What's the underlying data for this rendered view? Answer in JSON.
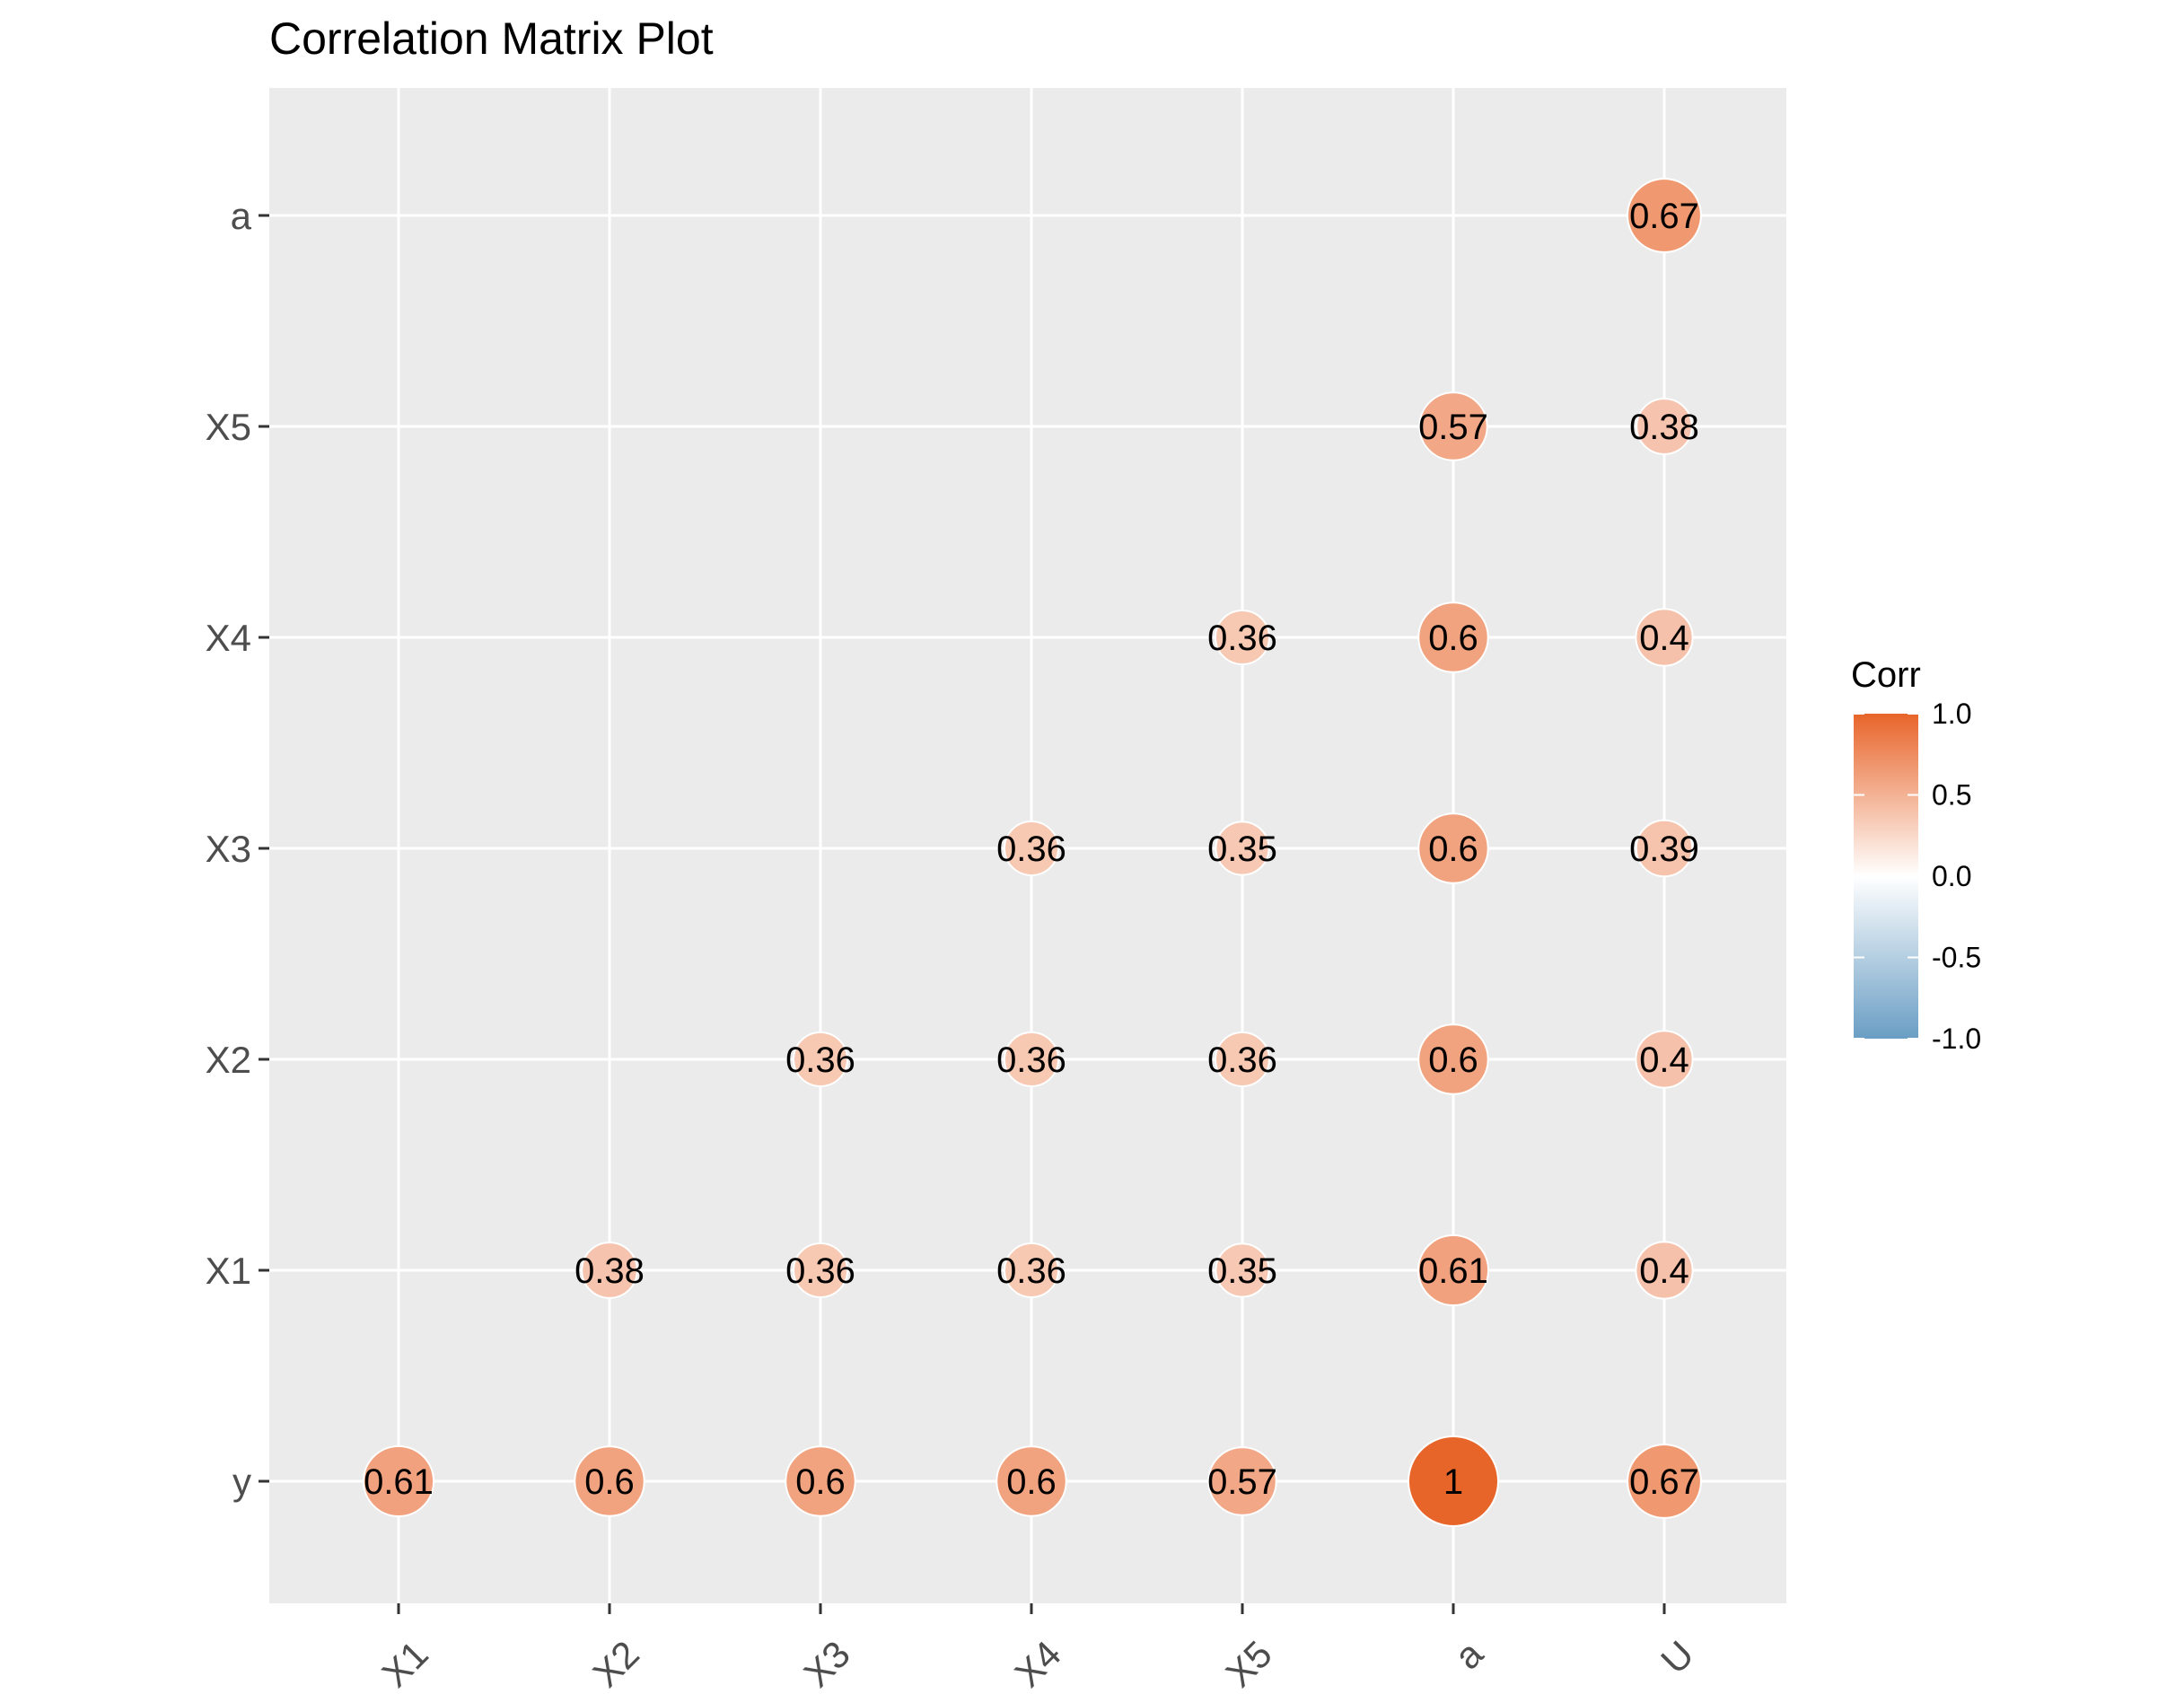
{
  "chart_data": {
    "type": "scatter",
    "title": "Correlation Matrix Plot",
    "xlabel": "",
    "ylabel": "",
    "x_categories": [
      "X1",
      "X2",
      "X3",
      "X4",
      "X5",
      "a",
      "U"
    ],
    "y_categories": [
      "y",
      "X1",
      "X2",
      "X3",
      "X4",
      "X5",
      "a"
    ],
    "cells": [
      {
        "x": "X1",
        "y": "y",
        "value": 0.61,
        "label": "0.61"
      },
      {
        "x": "X2",
        "y": "y",
        "value": 0.6,
        "label": "0.6"
      },
      {
        "x": "X3",
        "y": "y",
        "value": 0.6,
        "label": "0.6"
      },
      {
        "x": "X4",
        "y": "y",
        "value": 0.6,
        "label": "0.6"
      },
      {
        "x": "X5",
        "y": "y",
        "value": 0.57,
        "label": "0.57"
      },
      {
        "x": "a",
        "y": "y",
        "value": 1.0,
        "label": "1"
      },
      {
        "x": "U",
        "y": "y",
        "value": 0.67,
        "label": "0.67"
      },
      {
        "x": "X2",
        "y": "X1",
        "value": 0.38,
        "label": "0.38"
      },
      {
        "x": "X3",
        "y": "X1",
        "value": 0.36,
        "label": "0.36"
      },
      {
        "x": "X4",
        "y": "X1",
        "value": 0.36,
        "label": "0.36"
      },
      {
        "x": "X5",
        "y": "X1",
        "value": 0.35,
        "label": "0.35"
      },
      {
        "x": "a",
        "y": "X1",
        "value": 0.61,
        "label": "0.61"
      },
      {
        "x": "U",
        "y": "X1",
        "value": 0.4,
        "label": "0.4"
      },
      {
        "x": "X3",
        "y": "X2",
        "value": 0.36,
        "label": "0.36"
      },
      {
        "x": "X4",
        "y": "X2",
        "value": 0.36,
        "label": "0.36"
      },
      {
        "x": "X5",
        "y": "X2",
        "value": 0.36,
        "label": "0.36"
      },
      {
        "x": "a",
        "y": "X2",
        "value": 0.6,
        "label": "0.6"
      },
      {
        "x": "U",
        "y": "X2",
        "value": 0.4,
        "label": "0.4"
      },
      {
        "x": "X4",
        "y": "X3",
        "value": 0.36,
        "label": "0.36"
      },
      {
        "x": "X5",
        "y": "X3",
        "value": 0.35,
        "label": "0.35"
      },
      {
        "x": "a",
        "y": "X3",
        "value": 0.6,
        "label": "0.6"
      },
      {
        "x": "U",
        "y": "X3",
        "value": 0.39,
        "label": "0.39"
      },
      {
        "x": "X5",
        "y": "X4",
        "value": 0.36,
        "label": "0.36"
      },
      {
        "x": "a",
        "y": "X4",
        "value": 0.6,
        "label": "0.6"
      },
      {
        "x": "U",
        "y": "X4",
        "value": 0.4,
        "label": "0.4"
      },
      {
        "x": "a",
        "y": "X5",
        "value": 0.57,
        "label": "0.57"
      },
      {
        "x": "U",
        "y": "X5",
        "value": 0.38,
        "label": "0.38"
      },
      {
        "x": "U",
        "y": "a",
        "value": 0.67,
        "label": "0.67"
      }
    ],
    "legend": {
      "title": "Corr",
      "placement": "right",
      "range": [
        -1.0,
        1.0
      ],
      "breaks": [
        1.0,
        0.5,
        0.0,
        -0.5,
        -1.0
      ],
      "break_labels": [
        "1.0",
        "0.5",
        "0.0",
        "-0.5",
        "-1.0"
      ]
    },
    "colors": {
      "high": "#e8652a",
      "mid": "#ffffff",
      "low": "#6a9ec4",
      "panel_background": "#ebebeb",
      "grid": "#ffffff"
    },
    "grid": true
  }
}
